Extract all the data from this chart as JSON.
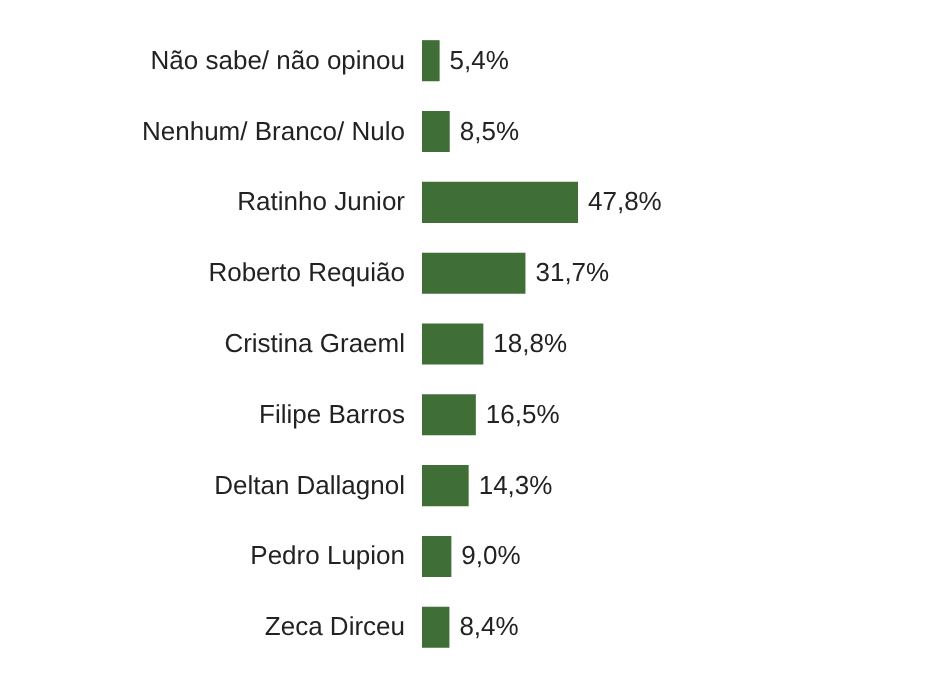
{
  "chart_data": {
    "type": "bar",
    "orientation": "horizontal",
    "categories": [
      "Não sabe/ não opinou",
      "Nenhum/ Branco/ Nulo",
      "Ratinho Junior",
      "Roberto Requião",
      "Cristina Graeml",
      "Filipe Barros",
      "Deltan Dallagnol",
      "Pedro Lupion",
      "Zeca Dirceu"
    ],
    "values": [
      5.4,
      8.5,
      47.8,
      31.7,
      18.8,
      16.5,
      14.3,
      9.0,
      8.4
    ],
    "value_labels": [
      "5,4%",
      "8,5%",
      "47,8%",
      "31,7%",
      "18,8%",
      "16,5%",
      "14,3%",
      "9,0%",
      "8,4%"
    ],
    "color": "#3f6e37"
  }
}
